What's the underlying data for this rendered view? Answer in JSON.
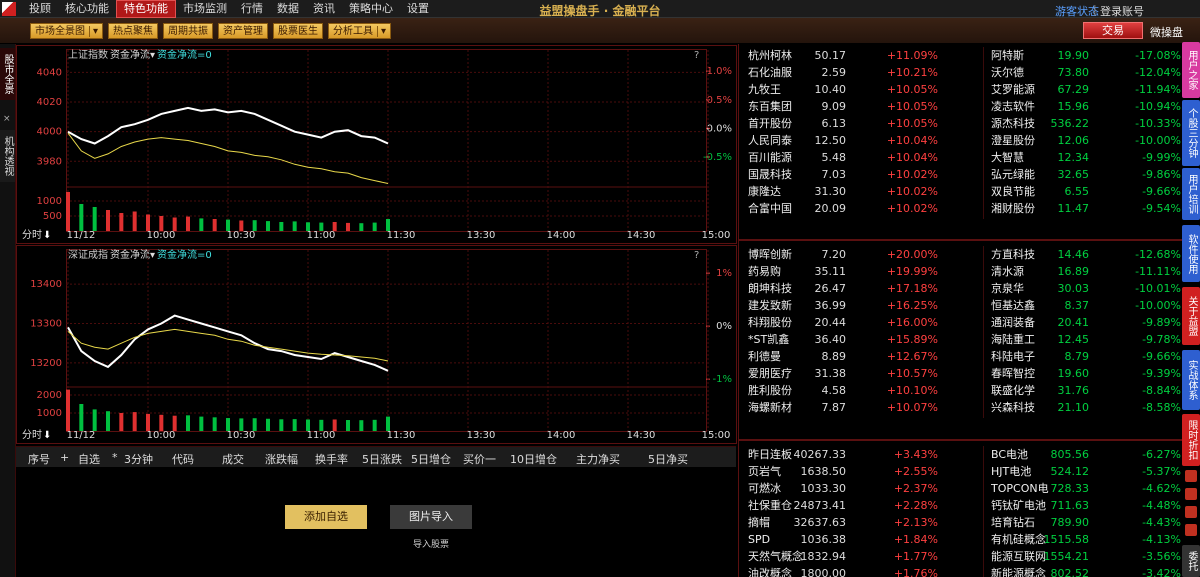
{
  "menu": {
    "items": [
      "投顾",
      "核心功能",
      "特色功能",
      "市场监测",
      "行情",
      "数据",
      "资讯",
      "策略中心",
      "设置"
    ],
    "active": 2
  },
  "app_title": "益盟操盘手 · 金融平台",
  "user": [
    "游客状态",
    "登录账号"
  ],
  "toolbar": [
    "市场全景图",
    "热点聚焦",
    "周期共振",
    "资产管理",
    "股票医生",
    "分析工具"
  ],
  "trade": [
    "交易",
    "微操盘"
  ],
  "left_tabs": [
    "股市全景",
    "机构透视"
  ],
  "chart_data": [
    {
      "type": "line",
      "title": "上证指数",
      "indicator": "资金净流",
      "indicator_value": "资金净流=0",
      "help": "?",
      "period": "分时",
      "x": [
        0,
        5,
        10,
        15,
        20,
        25,
        30,
        35,
        40,
        45,
        50,
        55,
        60,
        65,
        70,
        75,
        80,
        85,
        90,
        95,
        100,
        105,
        110,
        115,
        120
      ],
      "xlim": [
        0,
        240
      ],
      "xticks": [
        {
          "value": 0,
          "label": "11/12"
        },
        {
          "value": 30,
          "label": "10:00"
        },
        {
          "value": 60,
          "label": "10:30"
        },
        {
          "value": 90,
          "label": "11:00"
        },
        {
          "value": 120,
          "label": "11:30"
        },
        {
          "value": 150,
          "label": "13:30"
        },
        {
          "value": 180,
          "label": "14:00"
        },
        {
          "value": 210,
          "label": "14:30"
        },
        {
          "value": 240,
          "label": "15:00"
        }
      ],
      "ylim": [
        3964,
        4047
      ],
      "yticks": [
        3980,
        4000,
        4020,
        4040
      ],
      "y2lim": [
        -0.99,
        1.16
      ],
      "y2ticks": [
        {
          "value": -0.5,
          "label": "-0.5%"
        },
        {
          "value": 0,
          "label": "0.0%"
        },
        {
          "value": 0.5,
          "label": "0.5%"
        },
        {
          "value": 1.0,
          "label": "1.0%"
        }
      ],
      "series": [
        {
          "color": "#ffffff",
          "values": [
            4000,
            3995,
            3992,
            3997,
            4003,
            4005,
            4008,
            4012,
            4014,
            4016,
            4014,
            4015,
            4013,
            4014,
            4012,
            4008,
            4004,
            4000,
            3998,
            3996,
            4000,
            4001,
            3997,
            3996,
            3992
          ]
        },
        {
          "color": "#e8d84a",
          "values": [
            3999,
            3987,
            3982,
            3985,
            3990,
            3993,
            3995,
            3996,
            3995,
            3994,
            3992,
            3990,
            3987,
            3986,
            3984,
            3983,
            3981,
            3978,
            3976,
            3975,
            3973,
            3972,
            3969,
            3967,
            3965
          ]
        }
      ],
      "volume": {
        "colors": [
          "#e03030",
          "#00c040"
        ],
        "ylim": [
          0,
          1433
        ],
        "yticks": [
          500,
          1000
        ],
        "values": [
          1300,
          900,
          800,
          700,
          600,
          650,
          550,
          500,
          450,
          480,
          420,
          400,
          380,
          350,
          360,
          330,
          300,
          320,
          290,
          280,
          300,
          270,
          260,
          280,
          400
        ]
      }
    },
    {
      "type": "line",
      "title": "深证成指",
      "indicator": "资金净流",
      "indicator_value": "资金净流=0",
      "help": "?",
      "period": "分时",
      "x": [
        0,
        5,
        10,
        15,
        20,
        25,
        30,
        35,
        40,
        45,
        50,
        55,
        60,
        65,
        70,
        75,
        80,
        85,
        90,
        95,
        100,
        105,
        110,
        115,
        120
      ],
      "xlim": [
        0,
        240
      ],
      "xticks": [
        {
          "value": 0,
          "label": "11/12"
        },
        {
          "value": 30,
          "label": "10:00"
        },
        {
          "value": 60,
          "label": "10:30"
        },
        {
          "value": 90,
          "label": "11:00"
        },
        {
          "value": 120,
          "label": "11:30"
        },
        {
          "value": 150,
          "label": "13:30"
        },
        {
          "value": 180,
          "label": "14:00"
        },
        {
          "value": 210,
          "label": "14:30"
        },
        {
          "value": 240,
          "label": "15:00"
        }
      ],
      "ylim": [
        13144,
        13456
      ],
      "yticks": [
        13200,
        13300,
        13400
      ],
      "y2lim": [
        -1.11,
        1.21
      ],
      "y2ticks": [
        {
          "value": -1,
          "label": "-1%"
        },
        {
          "value": 0,
          "label": "0%"
        },
        {
          "value": 1,
          "label": "1%"
        }
      ],
      "series": [
        {
          "color": "#ffffff",
          "values": [
            13290,
            13230,
            13205,
            13190,
            13220,
            13260,
            13285,
            13300,
            13320,
            13310,
            13300,
            13290,
            13280,
            13270,
            13250,
            13235,
            13230,
            13220,
            13215,
            13210,
            13225,
            13215,
            13205,
            13195,
            13180
          ]
        },
        {
          "color": "#e8d84a",
          "values": [
            13280,
            13250,
            13240,
            13235,
            13250,
            13265,
            13275,
            13280,
            13285,
            13280,
            13275,
            13270,
            13260,
            13255,
            13245,
            13240,
            13235,
            13230,
            13225,
            13222,
            13220,
            13218,
            13215,
            13212,
            13205
          ]
        }
      ],
      "volume": {
        "colors": [
          "#e03030",
          "#00c040"
        ],
        "ylim": [
          0,
          2389
        ],
        "yticks": [
          1000,
          2000
        ],
        "values": [
          2300,
          1500,
          1200,
          1100,
          1000,
          1050,
          950,
          900,
          850,
          870,
          800,
          760,
          720,
          700,
          710,
          680,
          650,
          660,
          640,
          620,
          640,
          610,
          600,
          620,
          800
        ]
      }
    }
  ],
  "boards": [
    {
      "left": [
        [
          "杭州柯林",
          "50.17",
          "+11.09%"
        ],
        [
          "石化油服",
          "2.59",
          "+10.21%"
        ],
        [
          "九牧王",
          "10.40",
          "+10.05%"
        ],
        [
          "东百集团",
          "9.09",
          "+10.05%"
        ],
        [
          "首开股份",
          "6.13",
          "+10.05%"
        ],
        [
          "人民同泰",
          "12.50",
          "+10.04%"
        ],
        [
          "百川能源",
          "5.48",
          "+10.04%"
        ],
        [
          "国晟科技",
          "7.03",
          "+10.02%"
        ],
        [
          "康隆达",
          "31.30",
          "+10.02%"
        ],
        [
          "合富中国",
          "20.09",
          "+10.02%"
        ]
      ],
      "right": [
        [
          "阿特斯",
          "19.90",
          "-17.08%"
        ],
        [
          "沃尔德",
          "73.80",
          "-12.04%"
        ],
        [
          "艾罗能源",
          "67.29",
          "-11.94%"
        ],
        [
          "凌志软件",
          "15.96",
          "-10.94%"
        ],
        [
          "源杰科技",
          "536.22",
          "-10.33%"
        ],
        [
          "澄星股份",
          "12.06",
          "-10.00%"
        ],
        [
          "大智慧",
          "12.34",
          "-9.99%"
        ],
        [
          "弘元绿能",
          "32.65",
          "-9.86%"
        ],
        [
          "双良节能",
          "6.55",
          "-9.66%"
        ],
        [
          "湘财股份",
          "11.47",
          "-9.54%"
        ]
      ]
    },
    {
      "left": [
        [
          "博晖创新",
          "7.20",
          "+20.00%"
        ],
        [
          "药易购",
          "35.11",
          "+19.99%"
        ],
        [
          "朗坤科技",
          "26.47",
          "+17.18%"
        ],
        [
          "建发致新",
          "36.99",
          "+16.25%"
        ],
        [
          "科翔股份",
          "20.44",
          "+16.00%"
        ],
        [
          "*ST凯鑫",
          "36.40",
          "+15.89%"
        ],
        [
          "利德曼",
          "8.89",
          "+12.67%"
        ],
        [
          "爱朋医疗",
          "31.38",
          "+10.57%"
        ],
        [
          "胜利股份",
          "4.58",
          "+10.10%"
        ],
        [
          "海螺新材",
          "7.87",
          "+10.07%"
        ]
      ],
      "right": [
        [
          "方直科技",
          "14.46",
          "-12.68%"
        ],
        [
          "清水源",
          "16.89",
          "-11.11%"
        ],
        [
          "京泉华",
          "30.03",
          "-10.01%"
        ],
        [
          "恒基达鑫",
          "8.37",
          "-10.00%"
        ],
        [
          "通润装备",
          "20.41",
          "-9.89%"
        ],
        [
          "海陆重工",
          "12.45",
          "-9.78%"
        ],
        [
          "科陆电子",
          "8.79",
          "-9.66%"
        ],
        [
          "春晖智控",
          "19.60",
          "-9.39%"
        ],
        [
          "联盛化学",
          "31.76",
          "-8.84%"
        ],
        [
          "兴森科技",
          "21.10",
          "-8.58%"
        ]
      ]
    },
    {
      "left": [
        [
          "昨日连板",
          "40267.33",
          "+3.43%"
        ],
        [
          "页岩气",
          "1638.50",
          "+2.55%"
        ],
        [
          "可燃冰",
          "1033.30",
          "+2.37%"
        ],
        [
          "社保重仓",
          "24873.41",
          "+2.28%"
        ],
        [
          "摘帽",
          "32637.63",
          "+2.13%"
        ],
        [
          "SPD",
          "1036.38",
          "+1.84%"
        ],
        [
          "天然气概念",
          "1832.94",
          "+1.77%"
        ],
        [
          "油改概念",
          "1800.00",
          "+1.76%"
        ]
      ],
      "right": [
        [
          "BC电池",
          "805.56",
          "-6.27%"
        ],
        [
          "HJT电池",
          "524.12",
          "-5.37%"
        ],
        [
          "TOPCON电池",
          "728.33",
          "-4.62%"
        ],
        [
          "钙钛矿电池",
          "711.63",
          "-4.48%"
        ],
        [
          "培育钻石",
          "789.90",
          "-4.43%"
        ],
        [
          "有机硅概念",
          "1515.58",
          "-4.13%"
        ],
        [
          "能源互联网",
          "1554.21",
          "-3.56%"
        ],
        [
          "新能源概念",
          "802.52",
          "-3.42%"
        ]
      ]
    }
  ],
  "watchlist": {
    "columns": [
      "序号",
      "+",
      "自选",
      "*",
      "3分钟",
      "代码",
      "成交",
      "涨跌幅",
      "换手率",
      "5日涨跌",
      "5日增仓",
      "买价一",
      "10日增仓",
      "主力净买",
      "5日净买"
    ],
    "buttons": [
      "添加自选",
      "图片导入"
    ],
    "import_hint": "导入股票"
  },
  "right_tabs": [
    "用户之家",
    "个股三分钟",
    "用户培训",
    "软件使用",
    "关于益盟",
    "实战体系",
    "限时折扣",
    "委托"
  ]
}
